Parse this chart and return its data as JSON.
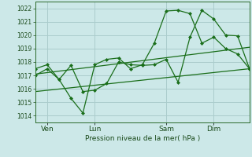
{
  "background_color": "#cce8e8",
  "grid_color": "#aacccc",
  "line_color": "#1a6e1a",
  "x_ticks_labels": [
    "Ven",
    "Lun",
    "Sam",
    "Dim"
  ],
  "x_ticks_pos": [
    0.5,
    2.5,
    5.5,
    7.5
  ],
  "xlabel": "Pression niveau de la mer( hPa )",
  "ylim": [
    1013.5,
    1022.5
  ],
  "yticks": [
    1014,
    1015,
    1016,
    1017,
    1018,
    1019,
    1020,
    1021,
    1022
  ],
  "series1_x": [
    0.0,
    0.5,
    1.0,
    1.5,
    2.0,
    2.5,
    3.0,
    3.5,
    4.0,
    4.5,
    5.0,
    5.5,
    6.0,
    6.5,
    7.0,
    7.5,
    8.0,
    8.5,
    9.0
  ],
  "series1_y": [
    1017.0,
    1017.5,
    1016.7,
    1015.3,
    1014.2,
    1017.8,
    1018.2,
    1018.3,
    1017.5,
    1017.8,
    1019.4,
    1021.8,
    1021.85,
    1021.6,
    1019.4,
    1019.85,
    1019.0,
    1018.6,
    1017.5
  ],
  "series2_x": [
    0.0,
    0.5,
    1.0,
    1.5,
    2.0,
    2.5,
    3.0,
    3.5,
    4.0,
    4.5,
    5.0,
    5.5,
    6.0,
    6.5,
    7.0,
    7.5,
    8.0,
    8.5,
    9.0
  ],
  "series2_y": [
    1017.5,
    1017.8,
    1016.7,
    1017.75,
    1015.8,
    1015.9,
    1016.4,
    1018.0,
    1017.8,
    1017.75,
    1017.8,
    1018.2,
    1016.5,
    1019.85,
    1021.85,
    1021.2,
    1020.0,
    1019.95,
    1017.5
  ],
  "trend1_x": [
    0.0,
    9.0
  ],
  "trend1_y": [
    1017.1,
    1019.1
  ],
  "trend2_x": [
    0.0,
    9.0
  ],
  "trend2_y": [
    1015.8,
    1017.5
  ],
  "vlines_x": [
    0.5,
    2.5,
    5.5,
    7.5
  ],
  "xlim": [
    0.0,
    9.0
  ],
  "figsize": [
    3.2,
    2.0
  ],
  "dpi": 100
}
